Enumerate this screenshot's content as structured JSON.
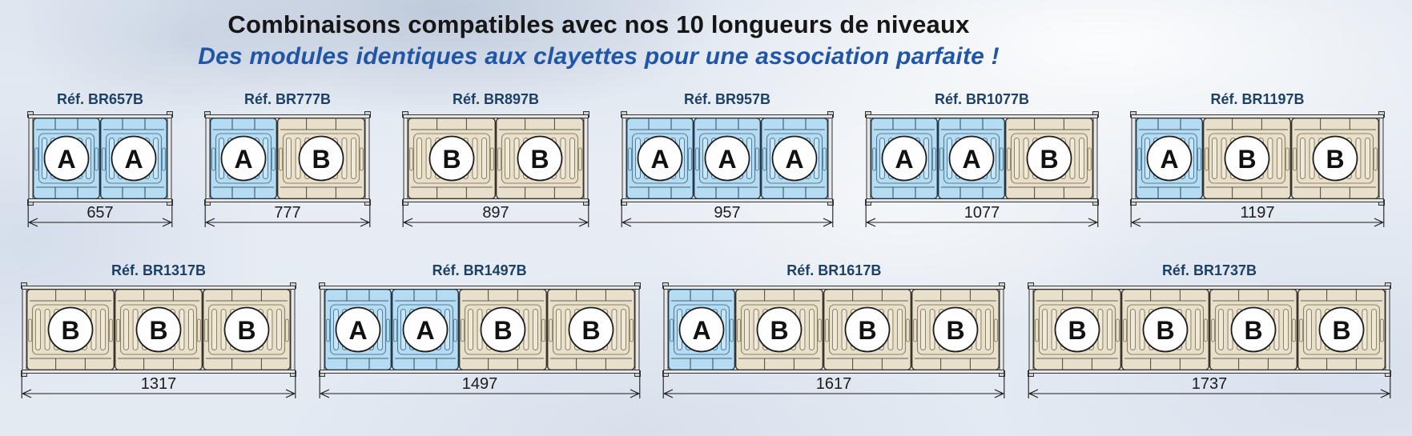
{
  "title": "Combinaisons compatibles avec nos 10 longueurs de niveaux",
  "subtitle": "Des modules identiques aux clayettes pour une association parfaite !",
  "colors": {
    "title": "#161616",
    "subtitle": "#2155a6",
    "ref_label": "#1c4066",
    "dimension": "#1c1c1c",
    "frame_fill": "#e6e7e9",
    "frame_stroke": "#333333",
    "frame_corner_fill": "#d0d3d6",
    "circle_fill": "#fefefe",
    "circle_stroke": "#1d1d1d",
    "letter": "#111111"
  },
  "module_types": {
    "A": {
      "label": "A",
      "fill": "#b5dcf2",
      "slot_fill": "#c9e6f7",
      "slot_stroke": "#557f9a",
      "stroke": "#223747",
      "width": 84,
      "slots": 6
    },
    "B": {
      "label": "B",
      "fill": "#e8e0ca",
      "slot_fill": "#f0e9d7",
      "slot_stroke": "#8c8266",
      "stroke": "#39342a",
      "width": 110,
      "slots": 8
    }
  },
  "rows": [
    {
      "items": [
        {
          "ref": "Réf. BR657B",
          "modules": [
            "A",
            "A"
          ],
          "dimension": "657"
        },
        {
          "ref": "Réf. BR777B",
          "modules": [
            "A",
            "B"
          ],
          "dimension": "777"
        },
        {
          "ref": "Réf. BR897B",
          "modules": [
            "B",
            "B"
          ],
          "dimension": "897"
        },
        {
          "ref": "Réf. BR957B",
          "modules": [
            "A",
            "A",
            "A"
          ],
          "dimension": "957"
        },
        {
          "ref": "Réf. BR1077B",
          "modules": [
            "A",
            "A",
            "B"
          ],
          "dimension": "1077"
        },
        {
          "ref": "Réf. BR1197B",
          "modules": [
            "A",
            "B",
            "B"
          ],
          "dimension": "1197"
        }
      ]
    },
    {
      "items": [
        {
          "ref": "Réf. BR1317B",
          "modules": [
            "B",
            "B",
            "B"
          ],
          "dimension": "1317"
        },
        {
          "ref": "Réf. BR1497B",
          "modules": [
            "A",
            "A",
            "B",
            "B"
          ],
          "dimension": "1497"
        },
        {
          "ref": "Réf. BR1617B",
          "modules": [
            "A",
            "B",
            "B",
            "B"
          ],
          "dimension": "1617"
        },
        {
          "ref": "Réf. BR1737B",
          "modules": [
            "B",
            "B",
            "B",
            "B"
          ],
          "dimension": "1737"
        }
      ]
    }
  ]
}
